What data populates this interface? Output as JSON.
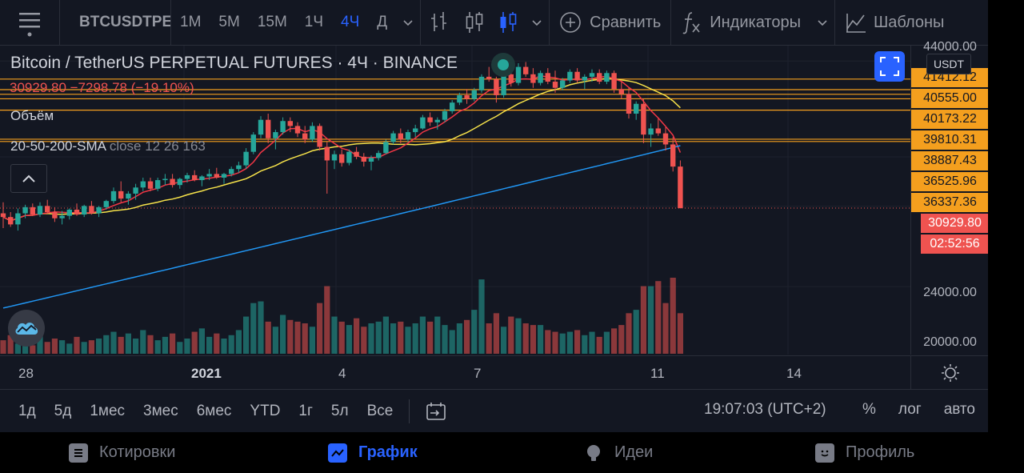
{
  "toolbar": {
    "symbol": "BTCUSDTPERP",
    "intervals": [
      "1М",
      "5М",
      "15М",
      "1Ч",
      "4Ч",
      "Д"
    ],
    "active_interval": "4Ч",
    "compare_label": "Сравнить",
    "indicators_label": "Индикаторы",
    "templates_label": "Шаблоны"
  },
  "legend": {
    "title": "Bitcoin / TetherUS PERPETUAL FUTURES · 4Ч · BINANCE",
    "ohlc": "30929.80  −7298.78 (−19.10%)",
    "volume_label": "Объём",
    "sma_name": "20-50-200-SMA",
    "sma_params": "close 12 26 163"
  },
  "currency": "USDT",
  "price_scale": {
    "top": "44000.00",
    "levels": [
      "41412.12",
      "40555.00",
      "40173.22",
      "39810.31",
      "38887.43",
      "36525.96",
      "36337.36"
    ],
    "last_price": "30929.80",
    "countdown": "02:52:56",
    "ticks": [
      "24000.00",
      "20000.00"
    ]
  },
  "time_axis": {
    "labels": [
      "28",
      "2021",
      "4",
      "7",
      "11",
      "14"
    ]
  },
  "rangebar": {
    "ranges": [
      "1д",
      "5д",
      "1мес",
      "3мес",
      "6мес",
      "YTD",
      "1г",
      "5л",
      "Все"
    ],
    "clock": "19:07:03 (UTC+2)",
    "percent": "%",
    "log": "лог",
    "auto": "авто"
  },
  "bottom_nav": {
    "quotes": "Котировки",
    "chart": "График",
    "ideas": "Идеи",
    "profile": "Профиль"
  },
  "chart_data": {
    "type": "candlestick",
    "up_color": "#26a69a",
    "down_color": "#ef5350",
    "sma_colors": [
      "#f23645",
      "#f5e14a",
      "#2196f3"
    ],
    "ohlc": [
      [
        30500,
        31400,
        29300,
        30200
      ],
      [
        30200,
        30600,
        29400,
        29600
      ],
      [
        29600,
        30900,
        29100,
        30500
      ],
      [
        30500,
        31200,
        30100,
        31000
      ],
      [
        31000,
        31300,
        30300,
        30400
      ],
      [
        30400,
        31400,
        30200,
        31100
      ],
      [
        31100,
        31600,
        30500,
        30600
      ],
      [
        30600,
        31000,
        29800,
        30100
      ],
      [
        30100,
        30700,
        29600,
        30300
      ],
      [
        30300,
        30900,
        30000,
        30800
      ],
      [
        30800,
        31300,
        30300,
        30400
      ],
      [
        30400,
        31200,
        30200,
        31100
      ],
      [
        31100,
        31500,
        30400,
        30500
      ],
      [
        30500,
        31100,
        30200,
        31000
      ],
      [
        31000,
        31600,
        30800,
        31500
      ],
      [
        31500,
        32600,
        31300,
        32300
      ],
      [
        32300,
        33100,
        31400,
        31700
      ],
      [
        31700,
        32300,
        31200,
        32100
      ],
      [
        32100,
        32900,
        31600,
        32600
      ],
      [
        32600,
        33400,
        32300,
        33100
      ],
      [
        33100,
        33400,
        32300,
        32500
      ],
      [
        32500,
        33400,
        32300,
        33200
      ],
      [
        33200,
        33700,
        32800,
        33300
      ],
      [
        33300,
        33700,
        32600,
        32800
      ],
      [
        32800,
        33400,
        32500,
        33300
      ],
      [
        33300,
        33800,
        33000,
        33600
      ],
      [
        33600,
        34000,
        33100,
        33200
      ],
      [
        33200,
        33600,
        32700,
        33500
      ],
      [
        33500,
        34100,
        33200,
        33700
      ],
      [
        33700,
        34200,
        33300,
        33400
      ],
      [
        33400,
        33800,
        32900,
        33700
      ],
      [
        33700,
        34300,
        33500,
        34100
      ],
      [
        34100,
        34700,
        33800,
        34400
      ],
      [
        34400,
        35800,
        34100,
        35500
      ],
      [
        35500,
        37100,
        35300,
        36900
      ],
      [
        36900,
        38400,
        36600,
        38100
      ],
      [
        38100,
        38600,
        36200,
        36600
      ],
      [
        36600,
        37300,
        35700,
        37100
      ],
      [
        37100,
        38300,
        36900,
        38000
      ],
      [
        38000,
        38300,
        37100,
        37600
      ],
      [
        37600,
        37900,
        36700,
        37000
      ],
      [
        37000,
        37600,
        36200,
        36500
      ],
      [
        36500,
        37900,
        36300,
        37600
      ],
      [
        37600,
        37800,
        35600,
        35900
      ],
      [
        35900,
        36300,
        32100,
        34800
      ],
      [
        34800,
        35600,
        34100,
        35300
      ],
      [
        35300,
        35700,
        34300,
        34600
      ],
      [
        34600,
        35700,
        34400,
        35500
      ],
      [
        35500,
        35900,
        34900,
        35100
      ],
      [
        35100,
        35400,
        34300,
        34700
      ],
      [
        34700,
        35200,
        34000,
        35000
      ],
      [
        35000,
        35600,
        34800,
        35400
      ],
      [
        35400,
        36500,
        35300,
        36300
      ],
      [
        36300,
        37200,
        36100,
        37000
      ],
      [
        37000,
        37400,
        36200,
        36500
      ],
      [
        36500,
        37300,
        36300,
        37100
      ],
      [
        37100,
        37700,
        36700,
        37400
      ],
      [
        37400,
        38500,
        37300,
        38300
      ],
      [
        38300,
        38700,
        37600,
        37900
      ],
      [
        37900,
        38300,
        37300,
        38100
      ],
      [
        38100,
        39000,
        37900,
        38800
      ],
      [
        38800,
        39700,
        38600,
        39500
      ],
      [
        39500,
        40300,
        39300,
        40100
      ],
      [
        40100,
        40600,
        39400,
        39800
      ],
      [
        39800,
        40700,
        39600,
        40500
      ],
      [
        40500,
        41800,
        40300,
        41600
      ],
      [
        41600,
        42400,
        41200,
        41400
      ],
      [
        41400,
        41600,
        39500,
        40100
      ],
      [
        40100,
        42000,
        39900,
        41800
      ],
      [
        41800,
        42300,
        40800,
        41100
      ],
      [
        41100,
        42700,
        40900,
        42400
      ],
      [
        42400,
        42800,
        41600,
        41800
      ],
      [
        41800,
        42300,
        40700,
        41100
      ],
      [
        41100,
        42100,
        40900,
        41900
      ],
      [
        41900,
        42300,
        41000,
        41200
      ],
      [
        41200,
        42100,
        40300,
        40700
      ],
      [
        40700,
        41500,
        40500,
        41300
      ],
      [
        41300,
        42200,
        41100,
        42000
      ],
      [
        42000,
        42300,
        41100,
        41300
      ],
      [
        41300,
        41800,
        40600,
        41600
      ],
      [
        41600,
        42200,
        41200,
        41900
      ],
      [
        41900,
        42200,
        41000,
        41200
      ],
      [
        41200,
        42100,
        41000,
        41900
      ],
      [
        41900,
        42100,
        40300,
        40600
      ],
      [
        40600,
        41200,
        39800,
        40200
      ],
      [
        40200,
        40700,
        38200,
        38600
      ],
      [
        38600,
        39600,
        38100,
        39400
      ],
      [
        39400,
        39800,
        36200,
        36900
      ],
      [
        36900,
        37800,
        35900,
        37400
      ],
      [
        37400,
        38200,
        36800,
        37000
      ],
      [
        37000,
        37500,
        35600,
        36100
      ],
      [
        36100,
        36700,
        33900,
        34300
      ],
      [
        34300,
        34800,
        30900,
        30930
      ]
    ],
    "volume": [
      8,
      11,
      6,
      9,
      5,
      12,
      7,
      9,
      8,
      6,
      10,
      7,
      8,
      9,
      11,
      13,
      10,
      12,
      9,
      14,
      11,
      8,
      10,
      12,
      7,
      9,
      13,
      15,
      10,
      12,
      9,
      11,
      14,
      22,
      30,
      31,
      19,
      16,
      23,
      20,
      19,
      18,
      16,
      30,
      40,
      22,
      19,
      17,
      21,
      16,
      18,
      19,
      22,
      18,
      19,
      16,
      18,
      22,
      19,
      22,
      17,
      14,
      18,
      20,
      26,
      44,
      18,
      24,
      16,
      22,
      21,
      18,
      17,
      17,
      14,
      13,
      12,
      13,
      14,
      11,
      13,
      10,
      13,
      15,
      17,
      24,
      26,
      40,
      40,
      43,
      30,
      45,
      24
    ],
    "ylim": [
      19000,
      44500
    ],
    "volume_max": 45
  }
}
